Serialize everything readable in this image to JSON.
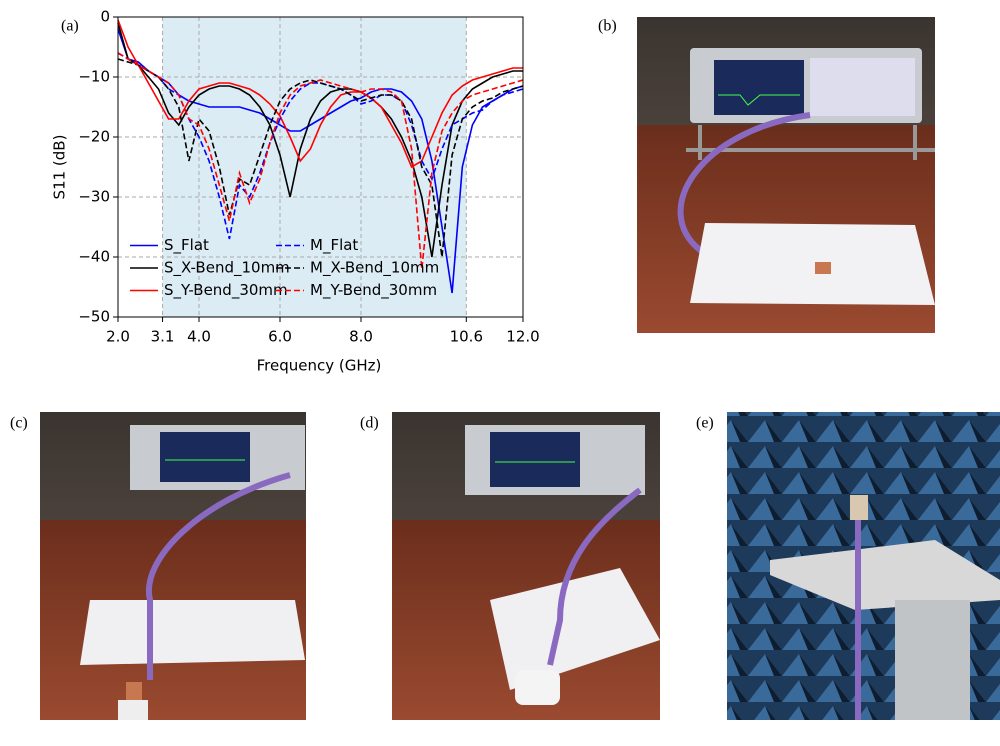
{
  "chart_data": {
    "type": "line",
    "xlabel": "Frequency (GHz)",
    "ylabel": "S11 (dB)",
    "x": [
      2.0,
      2.25,
      2.5,
      2.75,
      3.0,
      3.25,
      3.5,
      3.75,
      4.0,
      4.25,
      4.5,
      4.75,
      5.0,
      5.25,
      5.5,
      5.75,
      6.0,
      6.25,
      6.5,
      6.75,
      7.0,
      7.25,
      7.5,
      7.75,
      8.0,
      8.25,
      8.5,
      8.75,
      9.0,
      9.25,
      9.5,
      9.75,
      10.0,
      10.25,
      10.5,
      10.75,
      11.0,
      11.25,
      11.5,
      11.75,
      12.0
    ],
    "series": [
      {
        "name": "S_Flat",
        "color": "#0000ff",
        "dashed": false,
        "values": [
          -2,
          -7,
          -7.5,
          -9,
          -10,
          -11,
          -13,
          -14,
          -14.5,
          -15,
          -15,
          -15,
          -15,
          -15.5,
          -16,
          -17,
          -18,
          -19,
          -19,
          -18,
          -17,
          -16,
          -15,
          -14,
          -13.5,
          -12.5,
          -12,
          -12,
          -12.5,
          -14,
          -17,
          -24,
          -35,
          -46,
          -25,
          -18,
          -15,
          -14,
          -13,
          -12,
          -11.5
        ]
      },
      {
        "name": "S_X-Bend_10mm",
        "color": "#000000",
        "dashed": false,
        "values": [
          -1,
          -7,
          -8,
          -10,
          -12,
          -16,
          -18,
          -15,
          -13,
          -12,
          -11.5,
          -11.5,
          -12,
          -13,
          -15,
          -18,
          -23,
          -30,
          -22,
          -17,
          -14,
          -12.5,
          -12,
          -12,
          -12.5,
          -13.5,
          -15,
          -17,
          -20,
          -24,
          -30,
          -40,
          -28,
          -18,
          -14,
          -12,
          -11,
          -10,
          -9.5,
          -9,
          -9
        ]
      },
      {
        "name": "S_Y-Bend_30mm",
        "color": "#ff0000",
        "dashed": false,
        "values": [
          -0.5,
          -5,
          -8,
          -11,
          -14,
          -17,
          -17,
          -14,
          -12,
          -11.5,
          -11,
          -11,
          -11.5,
          -12,
          -13,
          -14.5,
          -16.5,
          -20,
          -24,
          -22,
          -18,
          -15,
          -13,
          -12.5,
          -12.5,
          -13.5,
          -15,
          -18,
          -21,
          -25,
          -24,
          -20,
          -16,
          -13,
          -11.5,
          -10.5,
          -10,
          -9.5,
          -9,
          -8.5,
          -8.5
        ]
      },
      {
        "name": "M_Flat",
        "color": "#0000ff",
        "dashed": true,
        "values": [
          -6,
          -7,
          -8,
          -9,
          -10,
          -12,
          -13,
          -17,
          -20,
          -24,
          -30,
          -37,
          -28,
          -30,
          -26,
          -21,
          -17,
          -14,
          -12,
          -11,
          -11,
          -11.5,
          -12,
          -13,
          -14.5,
          -14,
          -13,
          -13,
          -14,
          -18,
          -24,
          -27,
          -22,
          -18,
          -17,
          -16,
          -15.5,
          -14,
          -13,
          -12.5,
          -12
        ]
      },
      {
        "name": "M_X-Bend_10mm",
        "color": "#000000",
        "dashed": true,
        "values": [
          -7,
          -7.5,
          -8,
          -9,
          -10,
          -12,
          -15,
          -24,
          -17,
          -19,
          -25,
          -33,
          -27,
          -28,
          -23,
          -18,
          -14,
          -12,
          -11,
          -10.5,
          -11,
          -11.5,
          -12,
          -13,
          -14,
          -13.5,
          -13,
          -13,
          -14,
          -17,
          -25,
          -28,
          -40,
          -23,
          -17,
          -15,
          -14,
          -13.5,
          -12.5,
          -12,
          -11.5
        ]
      },
      {
        "name": "M_Y-Bend_30mm",
        "color": "#ff0000",
        "dashed": true,
        "values": [
          -6,
          -7,
          -8,
          -9,
          -10,
          -11,
          -13,
          -17,
          -18,
          -22,
          -28,
          -34,
          -26,
          -31,
          -27,
          -21,
          -16,
          -13,
          -11.5,
          -11,
          -10.5,
          -11,
          -11.5,
          -12,
          -12.5,
          -12,
          -12,
          -12.5,
          -14,
          -22,
          -42,
          -26,
          -19,
          -16,
          -14,
          -13,
          -12.5,
          -12,
          -11.5,
          -11,
          -10.5
        ]
      }
    ],
    "xlim": [
      2,
      12
    ],
    "ylim": [
      -50,
      0
    ],
    "xticks": [
      {
        "value": 2,
        "label": "2.0"
      },
      3.1,
      {
        "value": 4,
        "label": "4.0"
      },
      {
        "value": 6,
        "label": "6.0"
      },
      {
        "value": 8,
        "label": "8.0"
      },
      10.6,
      {
        "value": 12,
        "label": "12.0"
      }
    ],
    "yticks": [
      {
        "value": -50,
        "label": "−50"
      },
      {
        "value": -40,
        "label": "−40"
      },
      {
        "value": -30,
        "label": "−30"
      },
      {
        "value": -20,
        "label": "−20"
      },
      {
        "value": -10,
        "label": "−10"
      },
      0
    ],
    "shaded_band": [
      3.1,
      10.6
    ],
    "shade_color": "#dcecf4",
    "grid": true,
    "legend": "lower left",
    "legend_columns": 2
  },
  "panel_labels": [
    "(a)",
    "(b)",
    "(c)",
    "(d)",
    "(e)"
  ]
}
